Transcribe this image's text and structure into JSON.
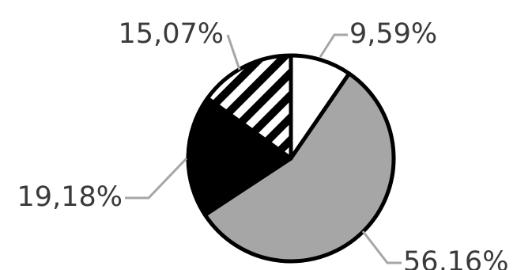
{
  "chart_data": {
    "type": "pie",
    "title": "",
    "start": "top",
    "direction": "clockwise",
    "slices": [
      {
        "label": "9,59%",
        "value": 9.59,
        "fill": "#ffffff",
        "pattern": "none"
      },
      {
        "label": "56,16%",
        "value": 56.16,
        "fill": "#a6a6a6",
        "pattern": "none"
      },
      {
        "label": "19,18%",
        "value": 19.18,
        "fill": "#000000",
        "pattern": "none"
      },
      {
        "label": "15,07%",
        "value": 15.07,
        "fill": "#ffffff",
        "pattern": "diagonal-stripes"
      }
    ],
    "legend": "none",
    "label_style": "leader-lines-outside",
    "outline_color": "#000000",
    "leader_color": "#a6a6a6"
  }
}
